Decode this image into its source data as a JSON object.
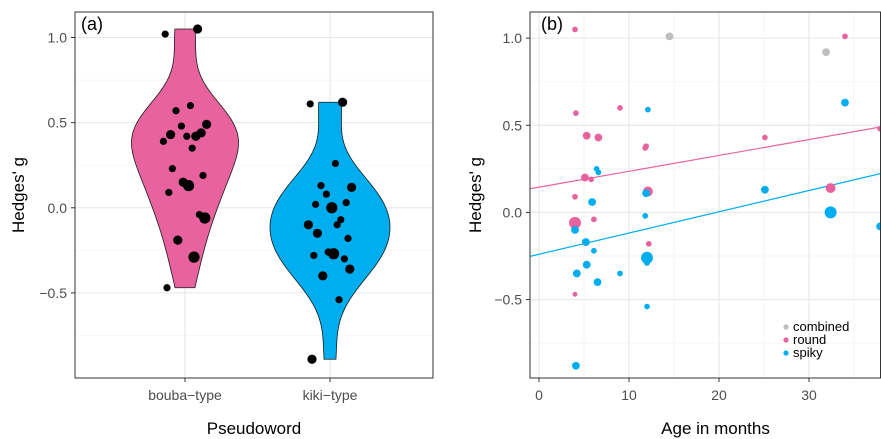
{
  "chart_data": [
    {
      "type": "violin",
      "panel_label": "(a)",
      "xlabel": "Pseudoword",
      "ylabel": "Hedges' g",
      "categories": [
        "bouba−type",
        "kiki−type"
      ],
      "ylim": [
        -1.0,
        1.15
      ],
      "yticks": [
        1.0,
        0.5,
        0.0,
        -0.5
      ],
      "ytick_labels": [
        "1.0",
        "0.5",
        "0.0",
        "−0.5"
      ],
      "grid": true,
      "colors": {
        "bouba−type": "#e8639e",
        "kiki−type": "#00aeef",
        "points": "#000000"
      },
      "series": [
        {
          "category": "bouba−type",
          "values": [
            1.05,
            1.02,
            0.6,
            0.57,
            0.49,
            0.48,
            0.44,
            0.43,
            0.42,
            0.42,
            0.39,
            0.35,
            0.23,
            0.19,
            0.15,
            0.13,
            0.09,
            -0.04,
            -0.06,
            -0.19,
            -0.29,
            -0.47
          ],
          "sizes": [
            2,
            1,
            1,
            1,
            2,
            1,
            2,
            2,
            1,
            2,
            1,
            1,
            1,
            1,
            2,
            3,
            1,
            1,
            3,
            2,
            3,
            1
          ]
        },
        {
          "category": "kiki−type",
          "values": [
            0.62,
            0.61,
            0.26,
            0.13,
            0.12,
            0.08,
            0.03,
            0.02,
            0.0,
            -0.07,
            -0.1,
            -0.1,
            -0.15,
            -0.18,
            -0.26,
            -0.27,
            -0.28,
            -0.3,
            -0.36,
            -0.4,
            -0.54,
            -0.89
          ],
          "sizes": [
            2,
            1,
            1,
            1,
            2,
            1,
            1,
            1,
            3,
            1,
            2,
            1,
            2,
            1,
            1,
            3,
            1,
            1,
            2,
            2,
            1,
            2
          ]
        }
      ]
    },
    {
      "type": "scatter",
      "panel_label": "(b)",
      "xlabel": "Age in months",
      "ylabel": "Hedges' g",
      "xlim": [
        -1,
        38
      ],
      "ylim": [
        -0.95,
        1.15
      ],
      "xticks": [
        0,
        10,
        20,
        30
      ],
      "xtick_labels": [
        "0",
        "10",
        "20",
        "30"
      ],
      "yticks": [
        1.0,
        0.5,
        0.0,
        -0.5
      ],
      "ytick_labels": [
        "1.0",
        "0.5",
        "0.0",
        "−0.5"
      ],
      "grid": true,
      "legend": {
        "position": "bottom-right",
        "entries": [
          "combined",
          "round",
          "spiky"
        ]
      },
      "colors": {
        "combined": "#bebebe",
        "round": "#e8639e",
        "spiky": "#00aeef"
      },
      "series": [
        {
          "name": "combined",
          "points": [
            [
              14.5,
              1.01,
              2
            ],
            [
              31.9,
              0.92,
              2
            ]
          ]
        },
        {
          "name": "round",
          "points": [
            [
              4.0,
              1.05,
              1
            ],
            [
              4.1,
              0.57,
              1
            ],
            [
              4.0,
              0.09,
              1
            ],
            [
              4.0,
              -0.06,
              4
            ],
            [
              4.0,
              -0.47,
              0.6
            ],
            [
              5.3,
              0.44,
              2
            ],
            [
              5.1,
              0.2,
              2
            ],
            [
              5.8,
              0.19,
              1
            ],
            [
              6.1,
              -0.04,
              1
            ],
            [
              6.6,
              0.43,
              2
            ],
            [
              9.0,
              0.6,
              1
            ],
            [
              11.8,
              0.37,
              1
            ],
            [
              11.9,
              0.38,
              1
            ],
            [
              12.1,
              0.12,
              3
            ],
            [
              12.2,
              -0.18,
              1
            ],
            [
              12.0,
              -0.26,
              1
            ],
            [
              25.1,
              0.43,
              1
            ],
            [
              32.4,
              0.14,
              3
            ],
            [
              34.0,
              1.01,
              1
            ],
            [
              37.9,
              0.48,
              1
            ]
          ]
        },
        {
          "name": "spiky",
          "points": [
            [
              4.0,
              -0.1,
              2
            ],
            [
              4.2,
              -0.35,
              2
            ],
            [
              4.1,
              -0.88,
              2
            ],
            [
              5.2,
              -0.17,
              2
            ],
            [
              5.3,
              -0.3,
              2
            ],
            [
              5.9,
              0.06,
              2
            ],
            [
              6.1,
              -0.22,
              1
            ],
            [
              6.4,
              0.25,
              1
            ],
            [
              6.6,
              0.23,
              1
            ],
            [
              6.5,
              -0.4,
              2
            ],
            [
              9.0,
              -0.35,
              1
            ],
            [
              11.8,
              -0.02,
              1
            ],
            [
              12.1,
              0.59,
              1
            ],
            [
              11.9,
              0.11,
              2
            ],
            [
              12.0,
              -0.26,
              4
            ],
            [
              12.0,
              -0.29,
              1
            ],
            [
              12.0,
              -0.54,
              1
            ],
            [
              25.1,
              0.13,
              2
            ],
            [
              32.4,
              0.0,
              4
            ],
            [
              34.0,
              0.63,
              2
            ],
            [
              37.9,
              -0.08,
              2
            ]
          ]
        }
      ],
      "trendlines": [
        {
          "name": "round",
          "intercept": 0.145,
          "slope": 0.0091
        },
        {
          "name": "spiky",
          "intercept": -0.24,
          "slope": 0.0122
        }
      ]
    }
  ]
}
